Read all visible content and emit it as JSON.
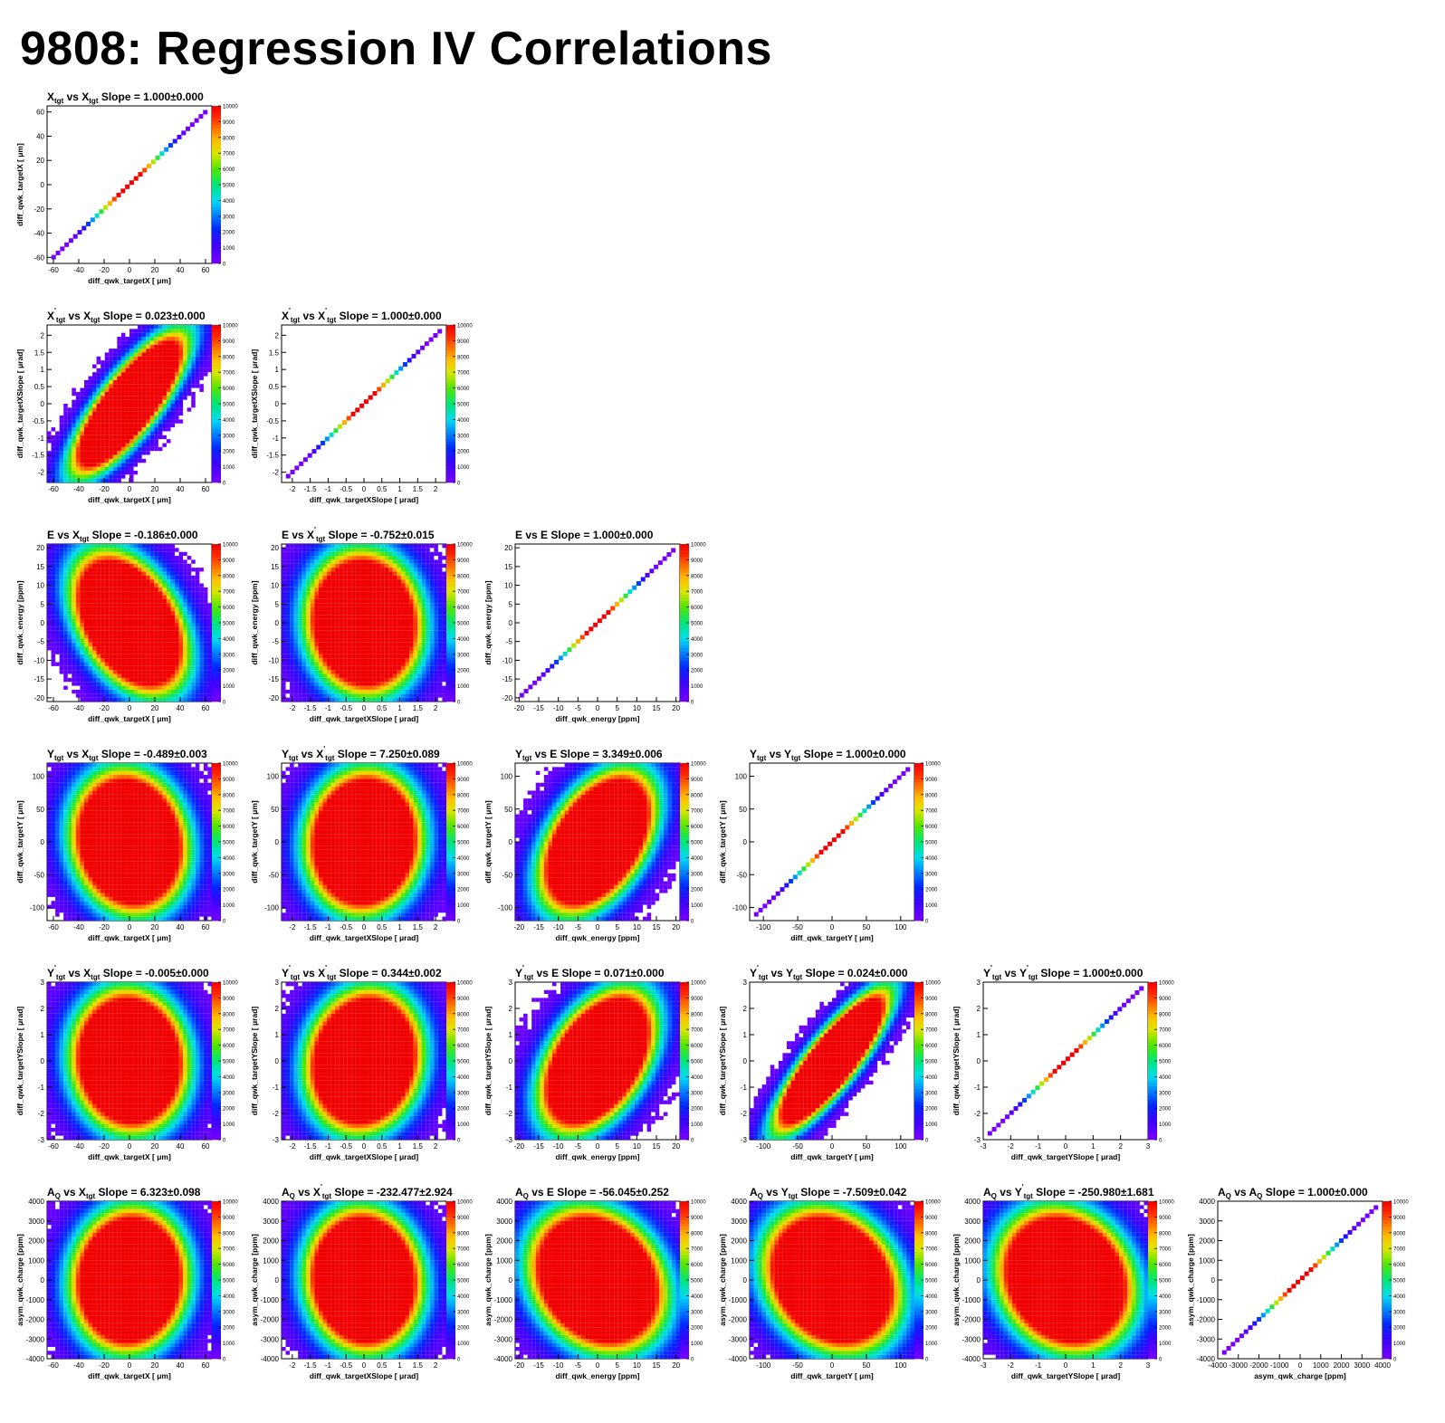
{
  "page_title": "9808: Regression IV Correlations",
  "colorbar": {
    "ticks": [
      "0",
      "1000",
      "2000",
      "3000",
      "4000",
      "5000",
      "6000",
      "7000",
      "8000",
      "9000",
      "10000"
    ],
    "max": 10000
  },
  "variables": [
    {
      "key": "X",
      "label": "diff_qwk_targetX [   μm]",
      "range": [
        -65,
        65
      ],
      "ticks": [
        "-60",
        "-40",
        "-20",
        "0",
        "20",
        "40",
        "60"
      ],
      "tickvals": [
        -60,
        -40,
        -20,
        0,
        20,
        40,
        60
      ]
    },
    {
      "key": "XS",
      "label": "diff_qwk_targetXSlope [   μrad]",
      "range": [
        -2.3,
        2.3
      ],
      "ticks": [
        "-2",
        "-1.5",
        "-1",
        "-0.5",
        "0",
        "0.5",
        "1",
        "1.5",
        "2"
      ],
      "tickvals": [
        -2,
        -1.5,
        -1,
        -0.5,
        0,
        0.5,
        1,
        1.5,
        2
      ]
    },
    {
      "key": "E",
      "label": "diff_qwk_energy [ppm]",
      "range": [
        -21,
        21
      ],
      "ticks": [
        "-20",
        "-15",
        "-10",
        "-5",
        "0",
        "5",
        "10",
        "15",
        "20"
      ],
      "tickvals": [
        -20,
        -15,
        -10,
        -5,
        0,
        5,
        10,
        15,
        20
      ]
    },
    {
      "key": "Y",
      "label": "diff_qwk_targetY [   μm]",
      "range": [
        -120,
        120
      ],
      "ticks": [
        "-100",
        "-50",
        "0",
        "50",
        "100"
      ],
      "tickvals": [
        -100,
        -50,
        0,
        50,
        100
      ]
    },
    {
      "key": "YS",
      "label": "diff_qwk_targetYSlope [   μrad]",
      "range": [
        -3,
        3
      ],
      "ticks": [
        "-3",
        "-2",
        "-1",
        "0",
        "1",
        "2",
        "3"
      ],
      "tickvals": [
        -3,
        -2,
        -1,
        0,
        1,
        2,
        3
      ]
    },
    {
      "key": "Q",
      "label": "asym_qwk_charge [ppm]",
      "range": [
        -4000,
        4000
      ],
      "ticks": [
        "-4000",
        "-3000",
        "-2000",
        "-1000",
        "0",
        "1000",
        "2000",
        "3000",
        "4000"
      ],
      "tickvals": [
        -4000,
        -3000,
        -2000,
        -1000,
        0,
        1000,
        2000,
        3000,
        4000
      ]
    }
  ],
  "chart_data": [
    {
      "type": "heatmap",
      "row": 0,
      "col": 0,
      "x": "X",
      "y": "X",
      "title": {
        "y": "X",
        "ysub": "tgt",
        "ysup": "",
        "x": "X",
        "xsub": "tgt",
        "xsup": "",
        "slope": "Slope = 1.000±0.000"
      },
      "slope": 1.0,
      "slope_err": 0.0,
      "correlation": 1.0
    },
    {
      "type": "heatmap",
      "row": 1,
      "col": 0,
      "x": "X",
      "y": "XS",
      "title": {
        "y": "X",
        "ysub": "tgt",
        "ysup": "'",
        "x": "X",
        "xsub": "tgt",
        "xsup": "",
        "slope": "Slope = 0.023±0.000"
      },
      "slope": 0.023,
      "slope_err": 0.0,
      "correlation": 0.8
    },
    {
      "type": "heatmap",
      "row": 1,
      "col": 1,
      "x": "XS",
      "y": "XS",
      "title": {
        "y": "X",
        "ysub": "tgt",
        "ysup": "'",
        "x": "X",
        "xsub": "tgt",
        "xsup": "'",
        "slope": "Slope = 1.000±0.000"
      },
      "slope": 1.0,
      "slope_err": 0.0,
      "correlation": 1.0
    },
    {
      "type": "heatmap",
      "row": 2,
      "col": 0,
      "x": "X",
      "y": "E",
      "title": {
        "y": "E",
        "ysub": "",
        "ysup": "",
        "x": "X",
        "xsub": "tgt",
        "xsup": "",
        "slope": "Slope = -0.186±0.000"
      },
      "slope": -0.186,
      "slope_err": 0.0,
      "correlation": -0.4
    },
    {
      "type": "heatmap",
      "row": 2,
      "col": 1,
      "x": "XS",
      "y": "E",
      "title": {
        "y": "E",
        "ysub": "",
        "ysup": "",
        "x": "X",
        "xsub": "tgt",
        "xsup": "'",
        "slope": "Slope = -0.752±0.015"
      },
      "slope": -0.752,
      "slope_err": 0.015,
      "correlation": -0.05
    },
    {
      "type": "heatmap",
      "row": 2,
      "col": 2,
      "x": "E",
      "y": "E",
      "title": {
        "y": "E",
        "ysub": "",
        "ysup": "",
        "x": "E",
        "xsub": "",
        "xsup": "",
        "slope": "Slope = 1.000±0.000"
      },
      "slope": 1.0,
      "slope_err": 0.0,
      "correlation": 1.0
    },
    {
      "type": "heatmap",
      "row": 3,
      "col": 0,
      "x": "X",
      "y": "Y",
      "title": {
        "y": "Y",
        "ysub": "tgt",
        "ysup": "",
        "x": "X",
        "xsub": "tgt",
        "xsup": "",
        "slope": "Slope = -0.489±0.003"
      },
      "slope": -0.489,
      "slope_err": 0.003,
      "correlation": -0.1
    },
    {
      "type": "heatmap",
      "row": 3,
      "col": 1,
      "x": "XS",
      "y": "Y",
      "title": {
        "y": "Y",
        "ysub": "tgt",
        "ysup": "",
        "x": "X",
        "xsub": "tgt",
        "xsup": "'",
        "slope": "Slope = 7.250±0.089"
      },
      "slope": 7.25,
      "slope_err": 0.089,
      "correlation": 0.05
    },
    {
      "type": "heatmap",
      "row": 3,
      "col": 2,
      "x": "E",
      "y": "Y",
      "title": {
        "y": "Y",
        "ysub": "tgt",
        "ysup": "",
        "x": "E",
        "xsub": "",
        "xsup": "",
        "slope": "Slope = 3.349±0.006"
      },
      "slope": 3.349,
      "slope_err": 0.006,
      "correlation": 0.45
    },
    {
      "type": "heatmap",
      "row": 3,
      "col": 3,
      "x": "Y",
      "y": "Y",
      "title": {
        "y": "Y",
        "ysub": "tgt",
        "ysup": "",
        "x": "Y",
        "xsub": "tgt",
        "xsup": "",
        "slope": "Slope = 1.000±0.000"
      },
      "slope": 1.0,
      "slope_err": 0.0,
      "correlation": 1.0
    },
    {
      "type": "heatmap",
      "row": 4,
      "col": 0,
      "x": "X",
      "y": "YS",
      "title": {
        "y": "Y",
        "ysub": "tgt",
        "ysup": "'",
        "x": "X",
        "xsub": "tgt",
        "xsup": "",
        "slope": "Slope = -0.005±0.000"
      },
      "slope": -0.005,
      "slope_err": 0.0,
      "correlation": -0.05
    },
    {
      "type": "heatmap",
      "row": 4,
      "col": 1,
      "x": "XS",
      "y": "YS",
      "title": {
        "y": "Y",
        "ysub": "tgt",
        "ysup": "'",
        "x": "X",
        "xsub": "tgt",
        "xsup": "'",
        "slope": "Slope = 0.344±0.002"
      },
      "slope": 0.344,
      "slope_err": 0.002,
      "correlation": 0.1
    },
    {
      "type": "heatmap",
      "row": 4,
      "col": 2,
      "x": "E",
      "y": "YS",
      "title": {
        "y": "Y",
        "ysub": "tgt",
        "ysup": "'",
        "x": "E",
        "xsub": "",
        "xsup": "",
        "slope": "Slope = 0.071±0.000"
      },
      "slope": 0.071,
      "slope_err": 0.0,
      "correlation": 0.45
    },
    {
      "type": "heatmap",
      "row": 4,
      "col": 3,
      "x": "Y",
      "y": "YS",
      "title": {
        "y": "Y",
        "ysub": "tgt",
        "ysup": "'",
        "x": "Y",
        "xsub": "tgt",
        "xsup": "",
        "slope": "Slope = 0.024±0.000"
      },
      "slope": 0.024,
      "slope_err": 0.0,
      "correlation": 0.85
    },
    {
      "type": "heatmap",
      "row": 4,
      "col": 4,
      "x": "YS",
      "y": "YS",
      "title": {
        "y": "Y",
        "ysub": "tgt",
        "ysup": "'",
        "x": "Y",
        "xsub": "tgt",
        "xsup": "'",
        "slope": "Slope = 1.000±0.000"
      },
      "slope": 1.0,
      "slope_err": 0.0,
      "correlation": 1.0
    },
    {
      "type": "heatmap",
      "row": 5,
      "col": 0,
      "x": "X",
      "y": "Q",
      "title": {
        "y": "A",
        "ysub": "Q",
        "ysup": "",
        "x": "X",
        "xsub": "tgt",
        "xsup": "",
        "slope": "Slope = 6.323±0.098"
      },
      "slope": 6.323,
      "slope_err": 0.098,
      "correlation": 0.05
    },
    {
      "type": "heatmap",
      "row": 5,
      "col": 1,
      "x": "XS",
      "y": "Q",
      "title": {
        "y": "A",
        "ysub": "Q",
        "ysup": "",
        "x": "X",
        "xsub": "tgt",
        "xsup": "'",
        "slope": "Slope = -232.477±2.924"
      },
      "slope": -232.477,
      "slope_err": 2.924,
      "correlation": -0.05
    },
    {
      "type": "heatmap",
      "row": 5,
      "col": 2,
      "x": "E",
      "y": "Q",
      "title": {
        "y": "A",
        "ysub": "Q",
        "ysup": "",
        "x": "E",
        "xsub": "",
        "xsup": "",
        "slope": "Slope = -56.045±0.252"
      },
      "slope": -56.045,
      "slope_err": 0.252,
      "correlation": -0.2
    },
    {
      "type": "heatmap",
      "row": 5,
      "col": 3,
      "x": "Y",
      "y": "Q",
      "title": {
        "y": "A",
        "ysub": "Q",
        "ysup": "",
        "x": "Y",
        "xsub": "tgt",
        "xsup": "",
        "slope": "Slope = -7.509±0.042"
      },
      "slope": -7.509,
      "slope_err": 0.042,
      "correlation": -0.2
    },
    {
      "type": "heatmap",
      "row": 5,
      "col": 4,
      "x": "YS",
      "y": "Q",
      "title": {
        "y": "A",
        "ysub": "Q",
        "ysup": "",
        "x": "Y",
        "xsub": "tgt",
        "xsup": "'",
        "slope": "Slope = -250.980±1.681"
      },
      "slope": -250.98,
      "slope_err": 1.681,
      "correlation": -0.15
    },
    {
      "type": "heatmap",
      "row": 5,
      "col": 5,
      "x": "Q",
      "y": "Q",
      "title": {
        "y": "A",
        "ysub": "Q",
        "ysup": "",
        "x": "A",
        "xsub": "Q",
        "xsup": "",
        "slope": "Slope = 1.000±0.000"
      },
      "slope": 1.0,
      "slope_err": 0.0,
      "correlation": 1.0
    }
  ]
}
